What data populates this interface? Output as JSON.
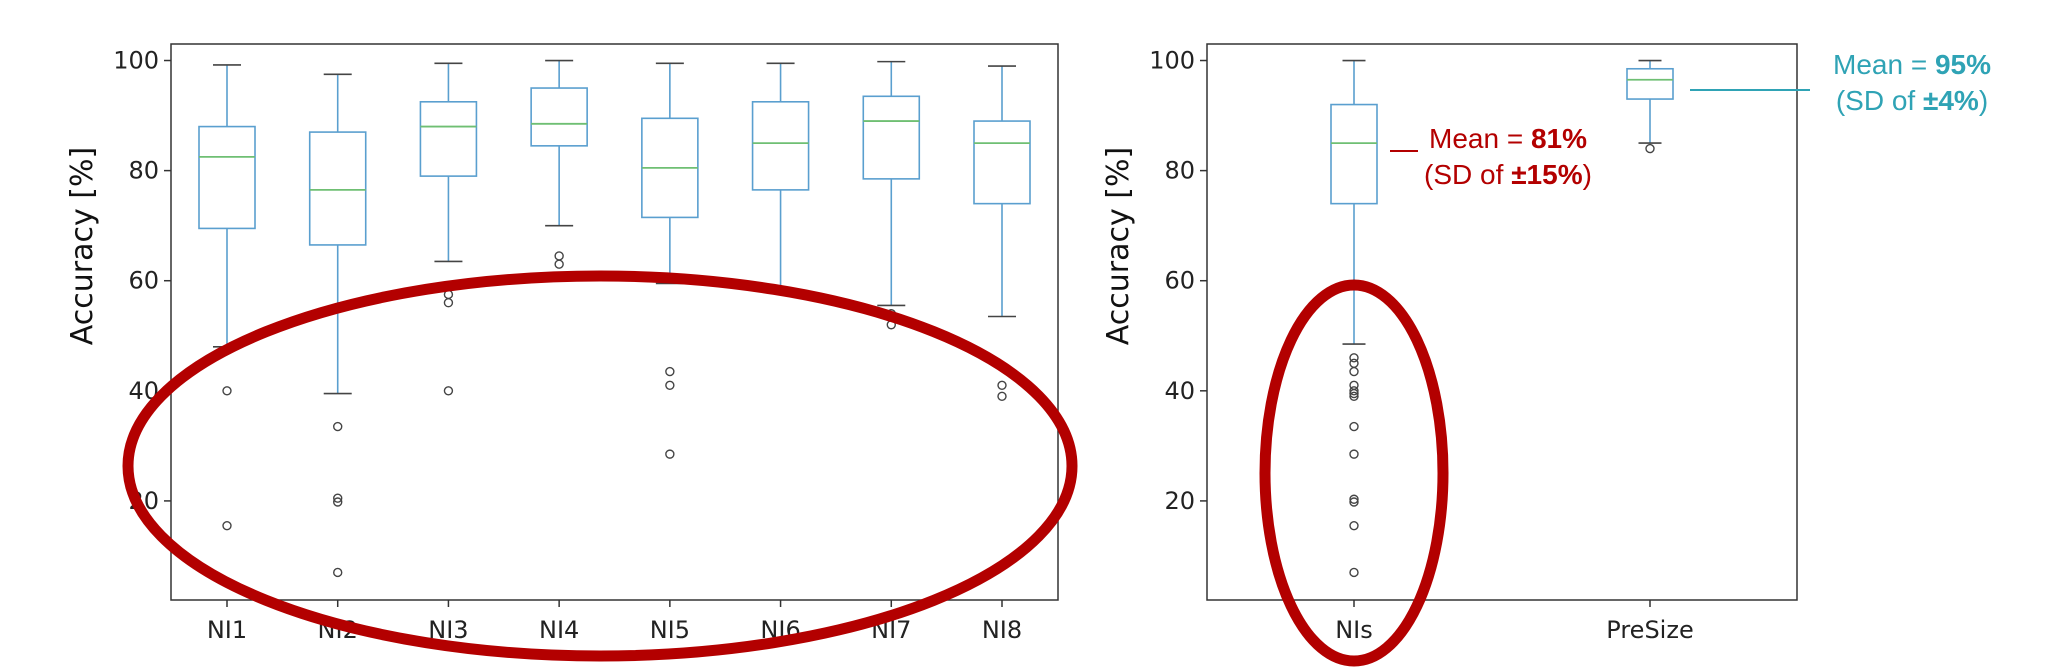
{
  "colors": {
    "box": "#5a9fcf",
    "median": "#6fbf73",
    "whisker": "#5a9fcf",
    "cap": "#444444",
    "flier": "#444444",
    "annotation_red": "#b30000",
    "annotation_blue": "#2fa3b5",
    "ellipse": "#b30000"
  },
  "chart_data": [
    {
      "type": "box",
      "ylabel": "Accuracy [%]",
      "ylim": [
        2,
        103
      ],
      "yticks": [
        20,
        40,
        60,
        80,
        100
      ],
      "categories": [
        "NI1",
        "NI2",
        "NI3",
        "NI4",
        "NI5",
        "NI6",
        "NI7",
        "NI8"
      ],
      "boxes": [
        {
          "label": "NI1",
          "q1": 69.5,
          "median": 82.5,
          "q3": 88.0,
          "whisker_low": 48.0,
          "whisker_high": 99.2,
          "fliers": [
            40.0,
            15.5
          ]
        },
        {
          "label": "NI2",
          "q1": 66.5,
          "median": 76.5,
          "q3": 87.0,
          "whisker_low": 39.5,
          "whisker_high": 97.5,
          "fliers": [
            33.5,
            20.5,
            19.8,
            7.0
          ]
        },
        {
          "label": "NI3",
          "q1": 79.0,
          "median": 88.0,
          "q3": 92.5,
          "whisker_low": 63.5,
          "whisker_high": 99.5,
          "fliers": [
            57.5,
            56.0,
            40.0
          ]
        },
        {
          "label": "NI4",
          "q1": 84.5,
          "median": 88.5,
          "q3": 95.0,
          "whisker_low": 70.0,
          "whisker_high": 100.0,
          "fliers": [
            64.5,
            63.0
          ]
        },
        {
          "label": "NI5",
          "q1": 71.5,
          "median": 80.5,
          "q3": 89.5,
          "whisker_low": 59.5,
          "whisker_high": 99.5,
          "fliers": [
            43.5,
            41.0,
            28.5
          ]
        },
        {
          "label": "NI6",
          "q1": 76.5,
          "median": 85.0,
          "q3": 92.5,
          "whisker_low": 58.5,
          "whisker_high": 99.5,
          "fliers": []
        },
        {
          "label": "NI7",
          "q1": 78.5,
          "median": 89.0,
          "q3": 93.5,
          "whisker_low": 55.5,
          "whisker_high": 99.8,
          "fliers": [
            54.0,
            52.0
          ]
        },
        {
          "label": "NI8",
          "q1": 74.0,
          "median": 85.0,
          "q3": 89.0,
          "whisker_low": 53.5,
          "whisker_high": 99.0,
          "fliers": [
            41.0,
            39.0
          ]
        }
      ]
    },
    {
      "type": "box",
      "ylabel": "Accuracy [%]",
      "ylim": [
        2,
        103
      ],
      "yticks": [
        20,
        40,
        60,
        80,
        100
      ],
      "categories": [
        "NIs",
        "PreSize"
      ],
      "boxes": [
        {
          "label": "NIs",
          "q1": 74.0,
          "median": 85.0,
          "q3": 92.0,
          "whisker_low": 48.5,
          "whisker_high": 100.0,
          "fliers": [
            46.0,
            45.0,
            43.5,
            41.0,
            40.0,
            39.5,
            39.0,
            33.5,
            28.5,
            20.3,
            19.8,
            15.5,
            7.0
          ]
        },
        {
          "label": "PreSize",
          "q1": 93.0,
          "median": 96.5,
          "q3": 98.5,
          "whisker_low": 85.0,
          "whisker_high": 100.0,
          "fliers": [
            84.0
          ]
        }
      ],
      "annotations": [
        {
          "text_prefix": "Mean = ",
          "value": "81%",
          "sd_prefix": "(SD of ",
          "sd_value": "±15%",
          "sd_suffix": ")"
        },
        {
          "text_prefix": "Mean = ",
          "value": "95%",
          "sd_prefix": "(SD of ",
          "sd_value": "±4%",
          "sd_suffix": ")"
        }
      ]
    }
  ]
}
